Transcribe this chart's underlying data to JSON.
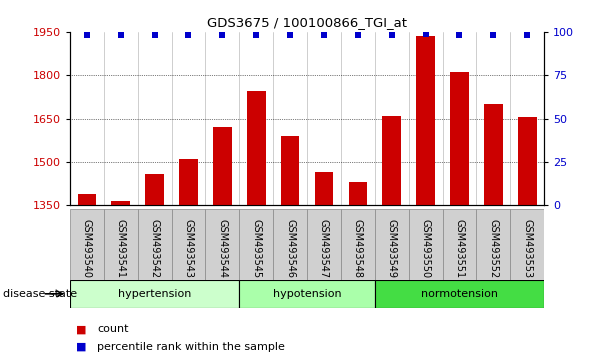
{
  "title": "GDS3675 / 100100866_TGI_at",
  "samples": [
    "GSM493540",
    "GSM493541",
    "GSM493542",
    "GSM493543",
    "GSM493544",
    "GSM493545",
    "GSM493546",
    "GSM493547",
    "GSM493548",
    "GSM493549",
    "GSM493550",
    "GSM493551",
    "GSM493552",
    "GSM493553"
  ],
  "counts": [
    1390,
    1365,
    1460,
    1510,
    1620,
    1745,
    1590,
    1465,
    1430,
    1660,
    1935,
    1810,
    1700,
    1655
  ],
  "percentiles": [
    98,
    98,
    98,
    98,
    98,
    98,
    98,
    98,
    98,
    98,
    99,
    98,
    98,
    98
  ],
  "groups": [
    {
      "label": "hypertension",
      "start": 0,
      "end": 5,
      "color": "#ccffcc"
    },
    {
      "label": "hypotension",
      "start": 5,
      "end": 9,
      "color": "#aaffaa"
    },
    {
      "label": "normotension",
      "start": 9,
      "end": 14,
      "color": "#44dd44"
    }
  ],
  "ylim_left": [
    1350,
    1950
  ],
  "ylim_right": [
    0,
    100
  ],
  "yticks_left": [
    1350,
    1500,
    1650,
    1800,
    1950
  ],
  "yticks_right": [
    0,
    25,
    50,
    75,
    100
  ],
  "bar_color": "#cc0000",
  "dot_color": "#0000cc",
  "bar_width": 0.55,
  "background_color": "#ffffff",
  "grid_color": "#000000",
  "tick_label_color_left": "#cc0000",
  "tick_label_color_right": "#0000cc",
  "legend_count_color": "#cc0000",
  "legend_pct_color": "#0000cc",
  "disease_state_label": "disease state",
  "xlabel_bg_color": "#d0d0d0",
  "xlabel_border_color": "#888888"
}
